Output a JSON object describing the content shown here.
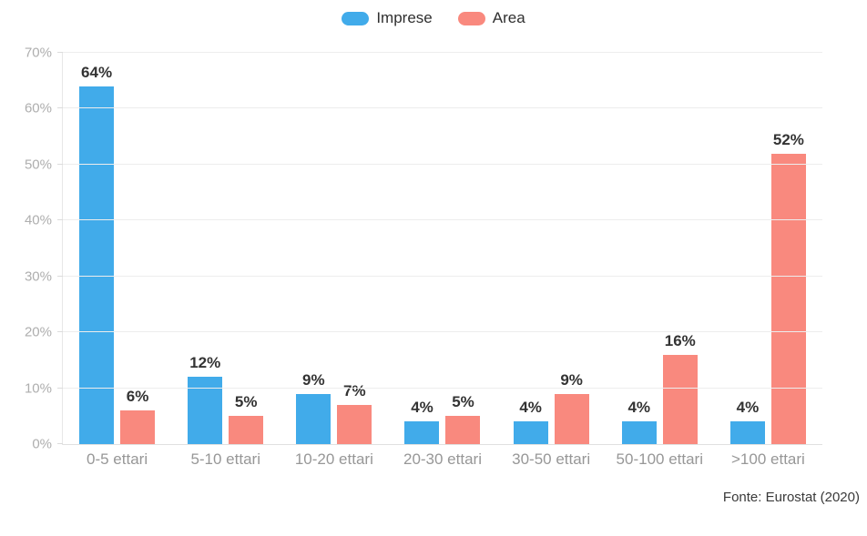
{
  "legend": {
    "items": [
      {
        "label": "Imprese",
        "color": "#41abea"
      },
      {
        "label": "Area",
        "color": "#f9897e"
      }
    ]
  },
  "footer": {
    "source": "Fonte: Eurostat (2020)"
  },
  "chart_data": {
    "type": "bar",
    "categories": [
      "0-5 ettari",
      "5-10 ettari",
      "10-20 ettari",
      "20-30 ettari",
      "30-50 ettari",
      "50-100 ettari",
      ">100 ettari"
    ],
    "series": [
      {
        "name": "Imprese",
        "color": "#41abea",
        "values": [
          64,
          12,
          9,
          4,
          4,
          4,
          4
        ]
      },
      {
        "name": "Area",
        "color": "#f9897e",
        "values": [
          6,
          5,
          7,
          5,
          9,
          16,
          52
        ]
      }
    ],
    "value_suffix": "%",
    "title": "",
    "xlabel": "",
    "ylabel": "",
    "ylim": [
      0,
      70
    ],
    "ytick_step": 10,
    "ytick_labels": [
      "0%",
      "10%",
      "20%",
      "30%",
      "40%",
      "50%",
      "60%",
      "70%"
    ],
    "grid": true,
    "legend_position": "top"
  }
}
